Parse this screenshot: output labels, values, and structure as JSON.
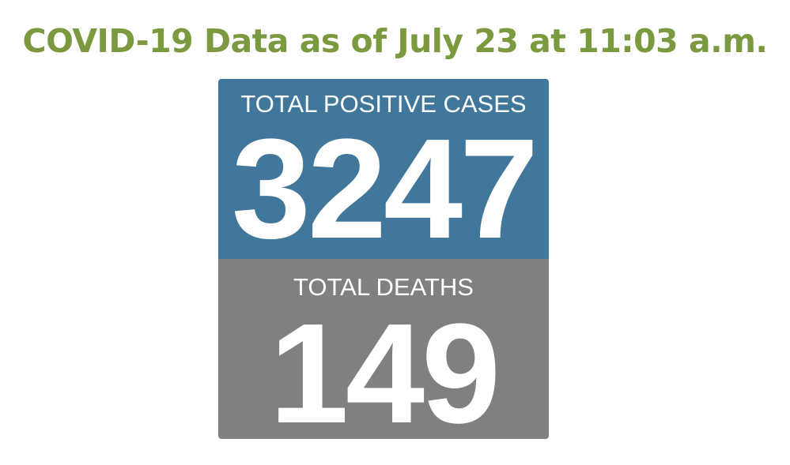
{
  "header": {
    "title": "COVID-19 Data as of July 23 at 11:03 a.m."
  },
  "cards": [
    {
      "label": "TOTAL POSITIVE CASES",
      "value": 3247
    },
    {
      "label": "TOTAL DEATHS",
      "value": 149
    }
  ]
}
